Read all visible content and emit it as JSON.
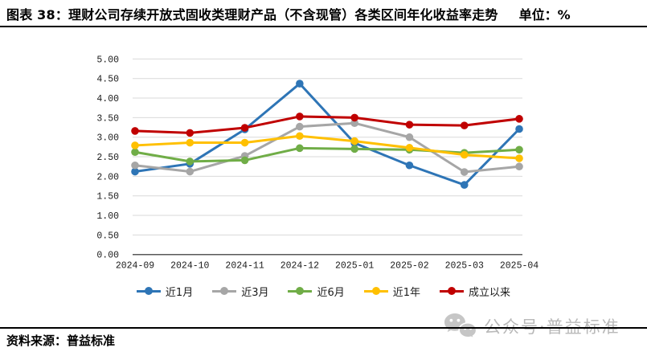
{
  "header": {
    "title": "图表 38：理财公司存续开放式固收类理财产品（不含现管）各类区间年化收益率走势",
    "unit": "单位：%"
  },
  "chart_data": {
    "type": "line",
    "title": "理财公司存续开放式固收类理财产品（不含现管）各类区间年化收益率走势",
    "ylabel": "",
    "xlabel": "",
    "ylim": [
      0,
      5
    ],
    "ytick_step": 0.5,
    "grid": true,
    "legend_position": "bottom",
    "categories": [
      "2024-09",
      "2024-10",
      "2024-11",
      "2024-12",
      "2025-01",
      "2025-02",
      "2025-03",
      "2025-04"
    ],
    "series": [
      {
        "name": "近1月",
        "color": "#2E75B6",
        "values": [
          2.12,
          2.32,
          3.2,
          4.37,
          2.85,
          2.28,
          1.78,
          3.21
        ]
      },
      {
        "name": "近3月",
        "color": "#A6A6A6",
        "values": [
          2.28,
          2.12,
          2.52,
          3.27,
          3.36,
          3.0,
          2.11,
          2.25
        ]
      },
      {
        "name": "近6月",
        "color": "#70AD47",
        "values": [
          2.62,
          2.38,
          2.41,
          2.72,
          2.7,
          2.68,
          2.6,
          2.68
        ]
      },
      {
        "name": "近1年",
        "color": "#FFC000",
        "values": [
          2.79,
          2.86,
          2.86,
          3.03,
          2.9,
          2.73,
          2.55,
          2.46
        ]
      },
      {
        "name": "成立以来",
        "color": "#C00000",
        "values": [
          3.16,
          3.11,
          3.24,
          3.53,
          3.5,
          3.32,
          3.3,
          3.47
        ]
      }
    ]
  },
  "footer": {
    "source": "资料来源：普益标准"
  },
  "watermark": {
    "icon": "wechat-icon",
    "text": "公众号·普益标准"
  },
  "colors": {
    "grid": "#D9D9D9",
    "axis": "#595959",
    "tick": "#1a1a1a",
    "watermark": "#C2C2C2"
  }
}
